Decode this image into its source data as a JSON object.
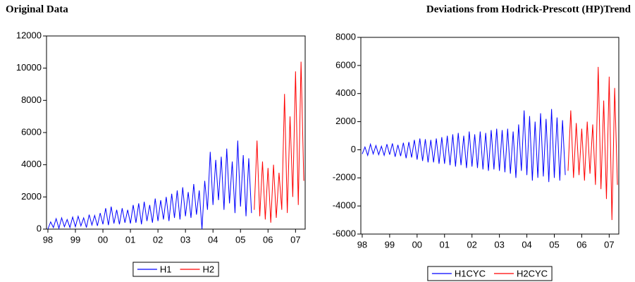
{
  "chart_data": [
    {
      "type": "line",
      "title": "Original Data",
      "xlim": [
        -0.05,
        9.35
      ],
      "xticks": [
        {
          "value": 0,
          "label": "98"
        },
        {
          "value": 1,
          "label": "99"
        },
        {
          "value": 2,
          "label": "00"
        },
        {
          "value": 3,
          "label": "01"
        },
        {
          "value": 4,
          "label": "02"
        },
        {
          "value": 5,
          "label": "03"
        },
        {
          "value": 6,
          "label": "04"
        },
        {
          "value": 7,
          "label": "05"
        },
        {
          "value": 8,
          "label": "06"
        },
        {
          "value": 9,
          "label": "07"
        }
      ],
      "ylim": [
        0,
        12000
      ],
      "yticks": [
        0,
        2000,
        4000,
        6000,
        8000,
        10000,
        12000
      ],
      "legend": "bottom",
      "series": [
        {
          "name": "H1",
          "color": "#0000ff",
          "x": [
            0,
            0.1,
            0.2,
            0.3,
            0.4,
            0.5,
            0.6,
            0.7,
            0.8,
            0.9,
            1,
            1.1,
            1.2,
            1.3,
            1.4,
            1.5,
            1.6,
            1.7,
            1.8,
            1.9,
            2,
            2.1,
            2.2,
            2.3,
            2.4,
            2.5,
            2.6,
            2.7,
            2.8,
            2.9,
            3,
            3.1,
            3.2,
            3.3,
            3.4,
            3.5,
            3.6,
            3.7,
            3.8,
            3.9,
            4,
            4.1,
            4.2,
            4.3,
            4.4,
            4.5,
            4.6,
            4.7,
            4.8,
            4.9,
            5,
            5.1,
            5.2,
            5.3,
            5.4,
            5.5,
            5.6,
            5.7,
            5.8,
            5.9,
            6,
            6.1,
            6.2,
            6.3,
            6.4,
            6.5,
            6.6,
            6.7,
            6.8,
            6.9,
            7,
            7.1,
            7.2,
            7.3,
            7.4
          ],
          "values": [
            0,
            450,
            100,
            650,
            50,
            700,
            150,
            600,
            100,
            750,
            150,
            800,
            200,
            700,
            100,
            900,
            250,
            850,
            200,
            1000,
            300,
            1300,
            250,
            1400,
            350,
            1200,
            300,
            1300,
            400,
            1200,
            350,
            1500,
            400,
            1600,
            300,
            1700,
            500,
            1500,
            400,
            1900,
            500,
            1800,
            600,
            2000,
            500,
            2200,
            700,
            2400,
            600,
            2600,
            800,
            2300,
            700,
            2800,
            900,
            2400,
            0,
            3000,
            1200,
            4800,
            1500,
            4300,
            1800,
            4500,
            1200,
            5000,
            1600,
            4200,
            1000,
            5500,
            1400,
            4600,
            800,
            4400,
            1000
          ]
        },
        {
          "name": "H2",
          "color": "#ff0000",
          "x": [
            7.5,
            7.6,
            7.7,
            7.8,
            7.9,
            8,
            8.1,
            8.2,
            8.3,
            8.4,
            8.5,
            8.6,
            8.7,
            8.8,
            8.9,
            9,
            9.1,
            9.2,
            9.3
          ],
          "values": [
            1200,
            5500,
            800,
            4200,
            600,
            3800,
            400,
            4000,
            700,
            3500,
            1200,
            8400,
            1000,
            7000,
            2000,
            9800,
            1500,
            10400,
            3000
          ]
        }
      ]
    },
    {
      "type": "line",
      "title": "Deviations from Hodrick-Prescott (HP)Trend",
      "xlim": [
        -0.05,
        9.35
      ],
      "xticks": [
        {
          "value": 0,
          "label": "98"
        },
        {
          "value": 1,
          "label": "99"
        },
        {
          "value": 2,
          "label": "00"
        },
        {
          "value": 3,
          "label": "01"
        },
        {
          "value": 4,
          "label": "02"
        },
        {
          "value": 5,
          "label": "03"
        },
        {
          "value": 6,
          "label": "04"
        },
        {
          "value": 7,
          "label": "05"
        },
        {
          "value": 8,
          "label": "06"
        },
        {
          "value": 9,
          "label": "07"
        }
      ],
      "ylim": [
        -6000,
        8000
      ],
      "yticks": [
        -6000,
        -4000,
        -2000,
        0,
        2000,
        4000,
        6000,
        8000
      ],
      "legend": "bottom",
      "series": [
        {
          "name": "H1CYC",
          "color": "#0000ff",
          "x": [
            0,
            0.1,
            0.2,
            0.3,
            0.4,
            0.5,
            0.6,
            0.7,
            0.8,
            0.9,
            1,
            1.1,
            1.2,
            1.3,
            1.4,
            1.5,
            1.6,
            1.7,
            1.8,
            1.9,
            2,
            2.1,
            2.2,
            2.3,
            2.4,
            2.5,
            2.6,
            2.7,
            2.8,
            2.9,
            3,
            3.1,
            3.2,
            3.3,
            3.4,
            3.5,
            3.6,
            3.7,
            3.8,
            3.9,
            4,
            4.1,
            4.2,
            4.3,
            4.4,
            4.5,
            4.6,
            4.7,
            4.8,
            4.9,
            5,
            5.1,
            5.2,
            5.3,
            5.4,
            5.5,
            5.6,
            5.7,
            5.8,
            5.9,
            6,
            6.1,
            6.2,
            6.3,
            6.4,
            6.5,
            6.6,
            6.7,
            6.8,
            6.9,
            7,
            7.1,
            7.2,
            7.3,
            7.4
          ],
          "values": [
            -300,
            200,
            -400,
            400,
            -300,
            300,
            -350,
            250,
            -400,
            400,
            -350,
            450,
            -500,
            350,
            -450,
            500,
            -600,
            550,
            -550,
            700,
            -700,
            800,
            -800,
            750,
            -900,
            700,
            -900,
            800,
            -1000,
            900,
            -1000,
            1000,
            -1100,
            1100,
            -1200,
            1200,
            -1100,
            1000,
            -1300,
            1300,
            -1200,
            1100,
            -1300,
            1300,
            -1400,
            1200,
            -1500,
            1400,
            -1400,
            1500,
            -1500,
            1400,
            -1600,
            1500,
            -1700,
            1300,
            -2000,
            1800,
            -1500,
            2800,
            -1800,
            2400,
            -2200,
            2000,
            -2000,
            2600,
            -1900,
            2200,
            -2300,
            2900,
            -2000,
            2300,
            -2200,
            2100,
            -1800
          ]
        },
        {
          "name": "H2CYC",
          "color": "#ff0000",
          "x": [
            7.5,
            7.6,
            7.7,
            7.8,
            7.9,
            8,
            8.1,
            8.2,
            8.3,
            8.4,
            8.5,
            8.6,
            8.7,
            8.8,
            8.9,
            9,
            9.1,
            9.2,
            9.3
          ],
          "values": [
            -1500,
            2800,
            -2000,
            1900,
            -1800,
            1500,
            -2200,
            2000,
            -1700,
            1800,
            -2500,
            5900,
            -2800,
            3500,
            -3500,
            5200,
            -5000,
            4400,
            -2500
          ]
        }
      ]
    }
  ]
}
